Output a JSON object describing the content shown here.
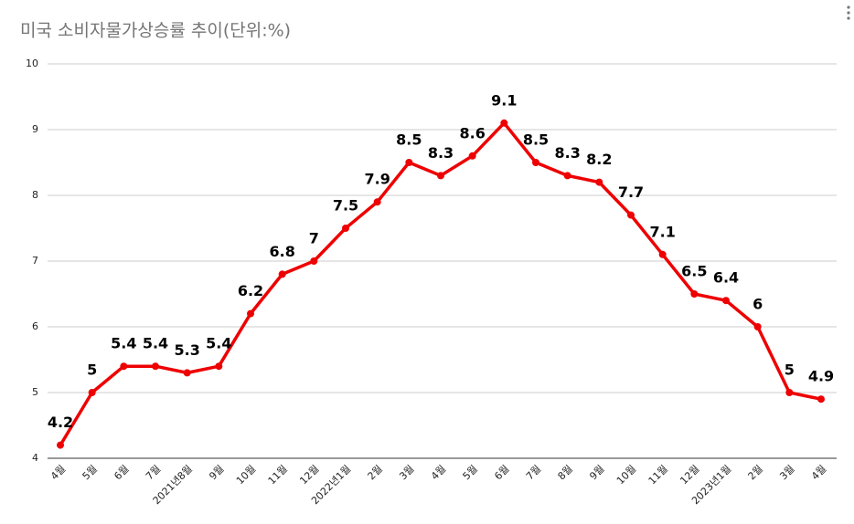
{
  "chart_data": {
    "type": "line",
    "title": "미국 소비자물가상승률 추이(단위:%)",
    "categories": [
      "4월",
      "5월",
      "6월",
      "7월",
      "2021년8월",
      "9월",
      "10월",
      "11월",
      "12월",
      "2022년1월",
      "2월",
      "3월",
      "4월",
      "5월",
      "6월",
      "7월",
      "8월",
      "9월",
      "10월",
      "11월",
      "12월",
      "2023년1월",
      "2월",
      "3월",
      "4월"
    ],
    "series": [
      {
        "name": "소비자물가상승률",
        "color": "#ee0000",
        "values": [
          4.2,
          5,
          5.4,
          5.4,
          5.3,
          5.4,
          6.2,
          6.8,
          7,
          7.5,
          7.9,
          8.5,
          8.3,
          8.6,
          9.1,
          8.5,
          8.3,
          8.2,
          7.7,
          7.1,
          6.5,
          6.4,
          6,
          5,
          4.9
        ]
      }
    ],
    "ylim": [
      4,
      10
    ],
    "yticks": [
      4,
      5,
      6,
      7,
      8,
      9,
      10
    ],
    "grid": true
  }
}
